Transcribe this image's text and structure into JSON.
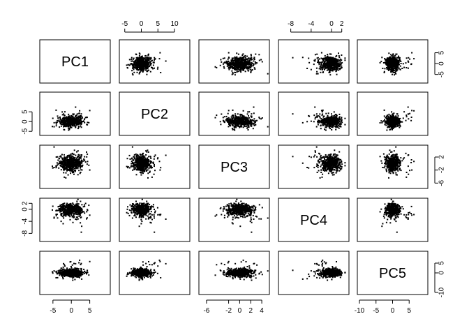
{
  "chart_data": {
    "type": "scatter",
    "variables": [
      "PC1",
      "PC2",
      "PC3",
      "PC4",
      "PC5"
    ],
    "ranges": {
      "PC1": [
        -8,
        10
      ],
      "PC2": [
        -6,
        14
      ],
      "PC3": [
        -7,
        5
      ],
      "PC4": [
        -10,
        3
      ],
      "PC5": [
        -10,
        10
      ]
    },
    "axes": {
      "top": {
        "PC2": [
          "-5",
          "0",
          "5",
          "10"
        ],
        "PC4": [
          "-8",
          "-4",
          "0",
          "2"
        ]
      },
      "bottom": {
        "PC1": [
          "-5",
          "0",
          "5"
        ],
        "PC3": [
          "-6",
          "-2",
          "0",
          "2",
          "4"
        ],
        "PC5": [
          "-10",
          "-5",
          "0",
          "5"
        ]
      },
      "left": {
        "PC2": [
          "-5",
          "0",
          "5"
        ],
        "PC4": [
          "-8",
          "-4",
          "0",
          "2"
        ]
      },
      "right": {
        "PC1": [
          "-5",
          "0",
          "5"
        ],
        "PC3": [
          "-6",
          "-2",
          "2"
        ],
        "PC5": [
          "-10",
          "0",
          "5"
        ]
      }
    },
    "point_color": "#000000",
    "grid": false,
    "legend": "none"
  }
}
